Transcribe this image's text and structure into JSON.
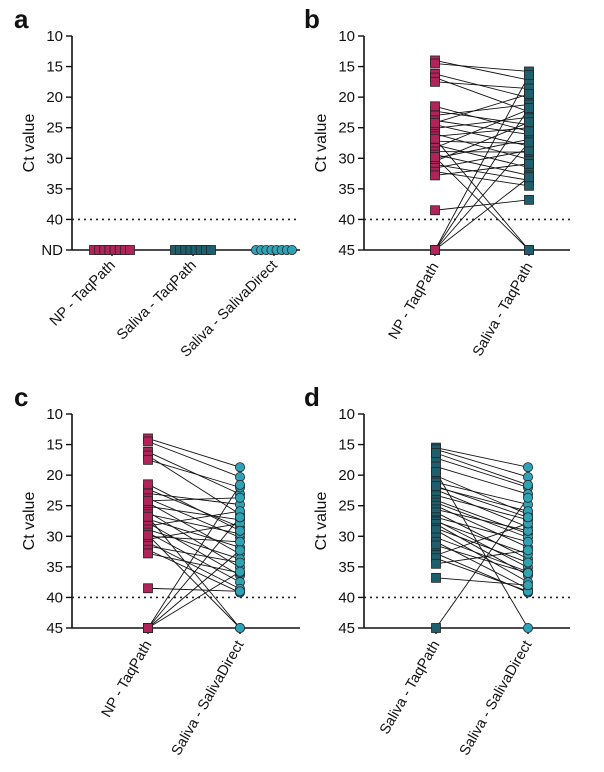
{
  "colors": {
    "np": "#b0245a",
    "saliva_taqpath": "#1e5f6e",
    "saliva_direct": "#2fa3b6"
  },
  "chart_data": [
    {
      "id": "a",
      "type": "scatter",
      "panel_label": "a",
      "ylabel": "Ct value",
      "y_ticks": [
        "10",
        "15",
        "20",
        "25",
        "30",
        "35",
        "40",
        "ND"
      ],
      "ylim": [
        10,
        45
      ],
      "y_inverted": true,
      "threshold": 40,
      "categories": [
        "NP - TaqPath",
        "Saliva - TaqPath",
        "Saliva - SalivaDirect"
      ],
      "series": [
        {
          "category": "NP - TaqPath",
          "marker": "square",
          "color": "np",
          "values": [
            "ND",
            "ND",
            "ND",
            "ND",
            "ND",
            "ND",
            "ND",
            "ND"
          ]
        },
        {
          "category": "Saliva - TaqPath",
          "marker": "square",
          "color": "saliva_taqpath",
          "values": [
            "ND",
            "ND",
            "ND",
            "ND",
            "ND",
            "ND",
            "ND",
            "ND"
          ]
        },
        {
          "category": "Saliva - SalivaDirect",
          "marker": "circle",
          "color": "saliva_direct",
          "values": [
            "ND",
            "ND",
            "ND",
            "ND",
            "ND",
            "ND",
            "ND",
            "ND"
          ]
        }
      ]
    },
    {
      "id": "b",
      "type": "line",
      "panel_label": "b",
      "ylabel": "Ct value",
      "y_ticks": [
        "10",
        "15",
        "20",
        "25",
        "30",
        "35",
        "40",
        "45"
      ],
      "ylim": [
        10,
        45
      ],
      "y_inverted": true,
      "threshold": 40,
      "categories": [
        "NP - TaqPath",
        "Saliva - TaqPath"
      ],
      "left_marker": "square",
      "left_color": "np",
      "right_marker": "square",
      "right_color": "saliva_taqpath",
      "pairs": [
        [
          14.0,
          17.2
        ],
        [
          14.5,
          15.8
        ],
        [
          16.2,
          20.1
        ],
        [
          16.8,
          22.4
        ],
        [
          17.5,
          18.6
        ],
        [
          22.3,
          24.5
        ],
        [
          23.0,
          21.2
        ],
        [
          23.8,
          26.1
        ],
        [
          24.5,
          28.0
        ],
        [
          25.1,
          23.3
        ],
        [
          26.0,
          30.2
        ],
        [
          26.4,
          25.0
        ],
        [
          27.2,
          27.6
        ],
        [
          27.8,
          31.5
        ],
        [
          28.3,
          22.0
        ],
        [
          28.9,
          29.0
        ],
        [
          29.4,
          32.8
        ],
        [
          30.0,
          26.9
        ],
        [
          30.5,
          24.1
        ],
        [
          31.0,
          33.6
        ],
        [
          31.6,
          28.7
        ],
        [
          32.2,
          34.5
        ],
        [
          32.8,
          30.9
        ],
        [
          38.5,
          36.8
        ],
        [
          45.0,
          16.4
        ],
        [
          45.0,
          21.8
        ],
        [
          45.0,
          27.4
        ],
        [
          45.0,
          33.1
        ],
        [
          26.8,
          45.0
        ],
        [
          29.8,
          45.0
        ],
        [
          24.2,
          19.5
        ],
        [
          21.5,
          25.6
        ]
      ]
    },
    {
      "id": "c",
      "type": "line",
      "panel_label": "c",
      "ylabel": "Ct value",
      "y_ticks": [
        "10",
        "15",
        "20",
        "25",
        "30",
        "35",
        "40",
        "45"
      ],
      "ylim": [
        10,
        45
      ],
      "y_inverted": true,
      "threshold": 40,
      "categories": [
        "NP - TaqPath",
        "Saliva - SalivaDirect"
      ],
      "left_marker": "square",
      "left_color": "np",
      "right_marker": "circle",
      "right_color": "saliva_direct",
      "pairs": [
        [
          14.0,
          18.7
        ],
        [
          14.5,
          20.3
        ],
        [
          16.2,
          23.1
        ],
        [
          16.8,
          26.4
        ],
        [
          17.5,
          22.0
        ],
        [
          22.3,
          28.5
        ],
        [
          23.0,
          24.8
        ],
        [
          23.8,
          30.2
        ],
        [
          24.5,
          32.9
        ],
        [
          25.1,
          27.3
        ],
        [
          26.0,
          35.1
        ],
        [
          26.4,
          29.6
        ],
        [
          27.2,
          31.8
        ],
        [
          27.8,
          36.4
        ],
        [
          28.3,
          25.9
        ],
        [
          28.9,
          33.7
        ],
        [
          29.4,
          37.5
        ],
        [
          30.0,
          30.9
        ],
        [
          30.5,
          27.9
        ],
        [
          31.0,
          38.6
        ],
        [
          31.6,
          34.3
        ],
        [
          32.2,
          39.2
        ],
        [
          32.8,
          36.0
        ],
        [
          38.5,
          39.0
        ],
        [
          45.0,
          21.6
        ],
        [
          45.0,
          26.9
        ],
        [
          45.0,
          32.3
        ],
        [
          45.0,
          35.8
        ],
        [
          26.8,
          45.0
        ],
        [
          29.8,
          45.0
        ],
        [
          24.2,
          23.7
        ],
        [
          21.5,
          29.1
        ]
      ]
    },
    {
      "id": "d",
      "type": "line",
      "panel_label": "d",
      "ylabel": "Ct value",
      "y_ticks": [
        "10",
        "15",
        "20",
        "25",
        "30",
        "35",
        "40",
        "45"
      ],
      "ylim": [
        10,
        45
      ],
      "y_inverted": true,
      "threshold": 40,
      "categories": [
        "Saliva - TaqPath",
        "Saliva - SalivaDirect"
      ],
      "left_marker": "square",
      "left_color": "saliva_taqpath",
      "right_marker": "circle",
      "right_color": "saliva_direct",
      "pairs": [
        [
          15.5,
          18.7
        ],
        [
          15.8,
          20.3
        ],
        [
          17.2,
          22.0
        ],
        [
          18.6,
          23.1
        ],
        [
          20.1,
          26.4
        ],
        [
          21.2,
          24.8
        ],
        [
          22.0,
          25.9
        ],
        [
          22.4,
          28.5
        ],
        [
          23.3,
          27.3
        ],
        [
          24.1,
          29.6
        ],
        [
          24.5,
          30.2
        ],
        [
          25.0,
          31.8
        ],
        [
          25.6,
          29.1
        ],
        [
          26.1,
          33.7
        ],
        [
          26.9,
          30.9
        ],
        [
          27.4,
          35.1
        ],
        [
          27.6,
          32.9
        ],
        [
          28.0,
          36.4
        ],
        [
          28.7,
          34.3
        ],
        [
          29.0,
          37.5
        ],
        [
          30.2,
          35.8
        ],
        [
          30.9,
          38.6
        ],
        [
          31.5,
          36.0
        ],
        [
          32.8,
          39.2
        ],
        [
          33.1,
          27.9
        ],
        [
          33.6,
          39.0
        ],
        [
          34.5,
          32.3
        ],
        [
          36.8,
          38.0
        ],
        [
          16.4,
          21.6
        ],
        [
          45.0,
          23.7
        ],
        [
          19.5,
          45.0
        ],
        [
          21.8,
          26.9
        ]
      ]
    }
  ]
}
